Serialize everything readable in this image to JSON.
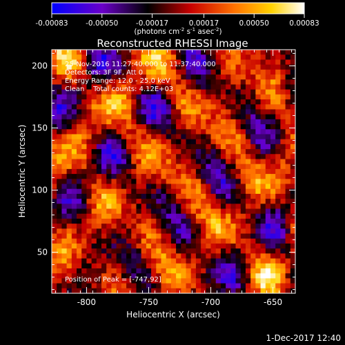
{
  "colorbar": {
    "ticks": [
      {
        "value": -0.00083,
        "label": "-0.00083"
      },
      {
        "value": -0.0005,
        "label": "-0.00050"
      },
      {
        "value": -0.00017,
        "label": "-0.00017"
      },
      {
        "value": 0.00017,
        "label": "0.00017"
      },
      {
        "value": 0.0005,
        "label": "0.00050"
      },
      {
        "value": 0.00083,
        "label": "0.00083"
      }
    ],
    "unit_main": "(photons cm",
    "unit_exp1": "-2",
    "unit_mid": " s",
    "unit_exp2": "-1",
    "unit_end": " asec",
    "unit_exp3": "-2",
    "unit_close": ")"
  },
  "annotations": {
    "time_range": "25-Nov-2016 11:27:40.000 to 11:37:40.000",
    "detectors": "Detectors: 3F 9F, Att 0",
    "energy": "Energy Range: 12.0 - 25.0 keV",
    "method": "Clean    Total counts: 4.12E+03",
    "peak": "Position of Peak = [-747,92]"
  },
  "footer_timestamp": "1-Dec-2017 12:40",
  "chart_data": {
    "type": "heatmap",
    "title": "Reconstructed RHESSI Image",
    "xlabel": "Heliocentric X (arcsec)",
    "ylabel": "Heliocentric Y (arcsec)",
    "xlim": [
      -828,
      -632
    ],
    "ylim": [
      17,
      213
    ],
    "x_ticks": [
      {
        "value": -800,
        "label": "-800"
      },
      {
        "value": -750,
        "label": "-750"
      },
      {
        "value": -700,
        "label": "-700"
      },
      {
        "value": -650,
        "label": "-650"
      }
    ],
    "y_ticks": [
      {
        "value": 50,
        "label": "50"
      },
      {
        "value": 100,
        "label": "100"
      },
      {
        "value": 150,
        "label": "150"
      },
      {
        "value": 200,
        "label": "200"
      }
    ],
    "colorbar_range": [
      -0.00083,
      0.00083
    ],
    "colormap": [
      "#0000ff",
      "#6a00c8",
      "#000000",
      "#c80000",
      "#ff7000",
      "#ffd200",
      "#ffffff"
    ],
    "peak_position": [
      -747,
      92
    ]
  }
}
